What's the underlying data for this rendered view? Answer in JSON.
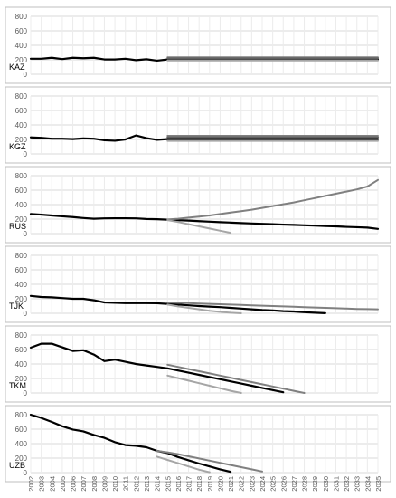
{
  "chart_data": [
    {
      "type": "line",
      "panel_label": "KAZ",
      "ylim": [
        0,
        800
      ],
      "yticks": [
        0,
        200,
        400,
        600,
        800
      ],
      "grid": true,
      "x": [
        2002,
        2003,
        2004,
        2005,
        2006,
        2007,
        2008,
        2009,
        2010,
        2011,
        2012,
        2013,
        2014,
        2015,
        2016,
        2017,
        2018,
        2019,
        2020,
        2021,
        2022,
        2023,
        2024,
        2025,
        2026,
        2027,
        2028,
        2029,
        2030,
        2031,
        2032,
        2033,
        2034,
        2035
      ],
      "series": [
        {
          "color": "#000000",
          "values": [
            215,
            215,
            228,
            210,
            228,
            222,
            228,
            205,
            205,
            215,
            195,
            208,
            188,
            205,
            205,
            205,
            205,
            205,
            205,
            205,
            205,
            205,
            205,
            205,
            205,
            205,
            205,
            205,
            205,
            205,
            205,
            205,
            205,
            205
          ]
        },
        {
          "color": "#808080",
          "values": [
            null,
            null,
            null,
            null,
            null,
            null,
            null,
            null,
            null,
            null,
            null,
            null,
            null,
            235,
            235,
            235,
            235,
            235,
            235,
            235,
            235,
            235,
            235,
            235,
            235,
            235,
            235,
            235,
            235,
            235,
            235,
            235,
            235,
            235
          ]
        },
        {
          "color": "#606060",
          "values": [
            null,
            null,
            null,
            null,
            null,
            null,
            null,
            null,
            null,
            null,
            null,
            null,
            null,
            220,
            220,
            220,
            220,
            220,
            220,
            220,
            220,
            220,
            220,
            220,
            220,
            220,
            220,
            220,
            220,
            220,
            220,
            220,
            220,
            220
          ]
        },
        {
          "color": "#a6a6a6",
          "values": [
            null,
            null,
            null,
            null,
            null,
            null,
            null,
            null,
            null,
            null,
            null,
            null,
            null,
            190,
            190,
            190,
            190,
            190,
            190,
            190,
            190,
            190,
            190,
            190,
            190,
            190,
            190,
            190,
            190,
            190,
            190,
            190,
            190,
            190
          ]
        }
      ]
    },
    {
      "type": "line",
      "panel_label": "KGZ",
      "ylim": [
        0,
        800
      ],
      "yticks": [
        0,
        200,
        400,
        600,
        800
      ],
      "grid": true,
      "x": [
        2002,
        2003,
        2004,
        2005,
        2006,
        2007,
        2008,
        2009,
        2010,
        2011,
        2012,
        2013,
        2014,
        2015,
        2016,
        2017,
        2018,
        2019,
        2020,
        2021,
        2022,
        2023,
        2024,
        2025,
        2026,
        2027,
        2028,
        2029,
        2030,
        2031,
        2032,
        2033,
        2034,
        2035
      ],
      "series": [
        {
          "color": "#000000",
          "values": [
            228,
            222,
            210,
            210,
            205,
            215,
            210,
            188,
            182,
            200,
            255,
            218,
            195,
            205,
            205,
            205,
            205,
            205,
            205,
            205,
            205,
            205,
            205,
            205,
            205,
            205,
            205,
            205,
            205,
            205,
            205,
            205,
            205,
            205
          ]
        },
        {
          "color": "#808080",
          "values": [
            null,
            null,
            null,
            null,
            null,
            null,
            null,
            null,
            null,
            null,
            null,
            null,
            null,
            250,
            250,
            250,
            250,
            250,
            250,
            250,
            250,
            250,
            250,
            250,
            250,
            250,
            250,
            250,
            250,
            250,
            250,
            250,
            250,
            250
          ]
        },
        {
          "color": "#606060",
          "values": [
            null,
            null,
            null,
            null,
            null,
            null,
            null,
            null,
            null,
            null,
            null,
            null,
            null,
            230,
            230,
            230,
            230,
            230,
            230,
            230,
            230,
            230,
            230,
            230,
            230,
            230,
            230,
            230,
            230,
            230,
            230,
            230,
            230,
            230
          ]
        },
        {
          "color": "#a6a6a6",
          "values": [
            null,
            null,
            null,
            null,
            null,
            null,
            null,
            null,
            null,
            null,
            null,
            null,
            null,
            180,
            180,
            180,
            180,
            180,
            180,
            180,
            180,
            180,
            180,
            180,
            180,
            180,
            180,
            180,
            180,
            180,
            180,
            180,
            180,
            180
          ]
        }
      ]
    },
    {
      "type": "line",
      "panel_label": "RUS",
      "ylim": [
        0,
        800
      ],
      "yticks": [
        0,
        200,
        400,
        600,
        800
      ],
      "grid": true,
      "x": [
        2002,
        2003,
        2004,
        2005,
        2006,
        2007,
        2008,
        2009,
        2010,
        2011,
        2012,
        2013,
        2014,
        2015,
        2016,
        2017,
        2018,
        2019,
        2020,
        2021,
        2022,
        2023,
        2024,
        2025,
        2026,
        2027,
        2028,
        2029,
        2030,
        2031,
        2032,
        2033,
        2034,
        2035
      ],
      "series": [
        {
          "color": "#000000",
          "values": [
            270,
            262,
            250,
            238,
            228,
            215,
            205,
            210,
            212,
            212,
            210,
            202,
            198,
            192,
            185,
            180,
            172,
            165,
            158,
            152,
            145,
            140,
            135,
            130,
            124,
            120,
            115,
            110,
            105,
            100,
            93,
            88,
            83,
            65
          ]
        },
        {
          "color": "#808080",
          "values": [
            null,
            null,
            null,
            null,
            null,
            null,
            null,
            null,
            null,
            null,
            null,
            null,
            null,
            195,
            205,
            220,
            235,
            250,
            270,
            290,
            310,
            330,
            355,
            380,
            405,
            430,
            460,
            490,
            520,
            550,
            580,
            610,
            650,
            740
          ]
        },
        {
          "color": "#a6a6a6",
          "values": [
            null,
            null,
            null,
            null,
            null,
            null,
            null,
            null,
            null,
            null,
            null,
            null,
            null,
            185,
            160,
            130,
            100,
            70,
            40,
            10,
            null,
            null,
            null,
            null,
            null,
            null,
            null,
            null,
            null,
            null,
            null,
            null,
            null,
            null
          ]
        }
      ]
    },
    {
      "type": "line",
      "panel_label": "TJK",
      "ylim": [
        0,
        800
      ],
      "yticks": [
        0,
        200,
        400,
        600,
        800
      ],
      "grid": true,
      "x": [
        2002,
        2003,
        2004,
        2005,
        2006,
        2007,
        2008,
        2009,
        2010,
        2011,
        2012,
        2013,
        2014,
        2015,
        2016,
        2017,
        2018,
        2019,
        2020,
        2021,
        2022,
        2023,
        2024,
        2025,
        2026,
        2027,
        2028,
        2029,
        2030,
        2031,
        2032,
        2033,
        2034,
        2035
      ],
      "series": [
        {
          "color": "#000000",
          "values": [
            240,
            225,
            220,
            210,
            200,
            200,
            180,
            150,
            145,
            140,
            140,
            140,
            138,
            130,
            120,
            110,
            100,
            92,
            85,
            75,
            65,
            55,
            45,
            40,
            30,
            25,
            15,
            8,
            2,
            null,
            null,
            null,
            null,
            null
          ]
        },
        {
          "color": "#808080",
          "values": [
            null,
            null,
            null,
            null,
            null,
            null,
            null,
            null,
            null,
            null,
            null,
            null,
            null,
            150,
            145,
            140,
            135,
            130,
            125,
            120,
            115,
            110,
            105,
            100,
            95,
            90,
            85,
            80,
            75,
            70,
            65,
            60,
            58,
            55
          ]
        },
        {
          "color": "#a6a6a6",
          "values": [
            null,
            null,
            null,
            null,
            null,
            null,
            null,
            null,
            null,
            null,
            null,
            null,
            null,
            120,
            95,
            75,
            55,
            35,
            20,
            8,
            0,
            null,
            null,
            null,
            null,
            null,
            null,
            null,
            null,
            null,
            null,
            null,
            null,
            null
          ]
        }
      ]
    },
    {
      "type": "line",
      "panel_label": "TKM",
      "ylim": [
        0,
        800
      ],
      "yticks": [
        0,
        200,
        400,
        600,
        800
      ],
      "grid": true,
      "x": [
        2002,
        2003,
        2004,
        2005,
        2006,
        2007,
        2008,
        2009,
        2010,
        2011,
        2012,
        2013,
        2014,
        2015,
        2016,
        2017,
        2018,
        2019,
        2020,
        2021,
        2022,
        2023,
        2024,
        2025,
        2026,
        2027,
        2028,
        2029,
        2030,
        2031,
        2032,
        2033,
        2034,
        2035
      ],
      "series": [
        {
          "color": "#000000",
          "values": [
            625,
            680,
            680,
            630,
            580,
            590,
            530,
            440,
            460,
            430,
            400,
            380,
            360,
            340,
            310,
            280,
            250,
            220,
            190,
            160,
            130,
            100,
            70,
            40,
            10,
            null,
            null,
            null,
            null,
            null,
            null,
            null,
            null,
            null
          ]
        },
        {
          "color": "#808080",
          "values": [
            null,
            null,
            null,
            null,
            null,
            null,
            null,
            null,
            null,
            null,
            null,
            null,
            null,
            390,
            360,
            330,
            300,
            270,
            240,
            210,
            180,
            150,
            120,
            90,
            60,
            30,
            0,
            null,
            null,
            null,
            null,
            null,
            null,
            null
          ]
        },
        {
          "color": "#a6a6a6",
          "values": [
            null,
            null,
            null,
            null,
            null,
            null,
            null,
            null,
            null,
            null,
            null,
            null,
            null,
            240,
            205,
            170,
            135,
            100,
            65,
            30,
            0,
            null,
            null,
            null,
            null,
            null,
            null,
            null,
            null,
            null,
            null,
            null,
            null,
            null
          ]
        }
      ]
    },
    {
      "type": "line",
      "panel_label": "UZB",
      "ylim": [
        0,
        800
      ],
      "yticks": [
        0,
        200,
        400,
        600,
        800
      ],
      "grid": true,
      "x": [
        2002,
        2003,
        2004,
        2005,
        2006,
        2007,
        2008,
        2009,
        2010,
        2011,
        2012,
        2013,
        2014,
        2015,
        2016,
        2017,
        2018,
        2019,
        2020,
        2021,
        2022,
        2023,
        2024,
        2025,
        2026,
        2027,
        2028,
        2029,
        2030,
        2031,
        2032,
        2033,
        2034,
        2035
      ],
      "series": [
        {
          "color": "#000000",
          "values": [
            800,
            755,
            700,
            640,
            595,
            570,
            520,
            480,
            420,
            380,
            370,
            350,
            300,
            270,
            215,
            170,
            125,
            85,
            45,
            10,
            null,
            null,
            null,
            null,
            null,
            null,
            null,
            null,
            null,
            null,
            null,
            null,
            null,
            null
          ]
        },
        {
          "color": "#808080",
          "values": [
            null,
            null,
            null,
            null,
            null,
            null,
            null,
            null,
            null,
            null,
            null,
            null,
            300,
            280,
            255,
            225,
            195,
            165,
            135,
            105,
            75,
            45,
            15,
            null,
            null,
            null,
            null,
            null,
            null,
            null,
            null,
            null,
            null,
            null
          ]
        },
        {
          "color": "#a6a6a6",
          "values": [
            null,
            null,
            null,
            null,
            null,
            null,
            null,
            null,
            null,
            null,
            null,
            null,
            220,
            175,
            130,
            85,
            40,
            5,
            null,
            null,
            null,
            null,
            null,
            null,
            null,
            null,
            null,
            null,
            null,
            null,
            null,
            null,
            null,
            null
          ]
        }
      ]
    }
  ]
}
